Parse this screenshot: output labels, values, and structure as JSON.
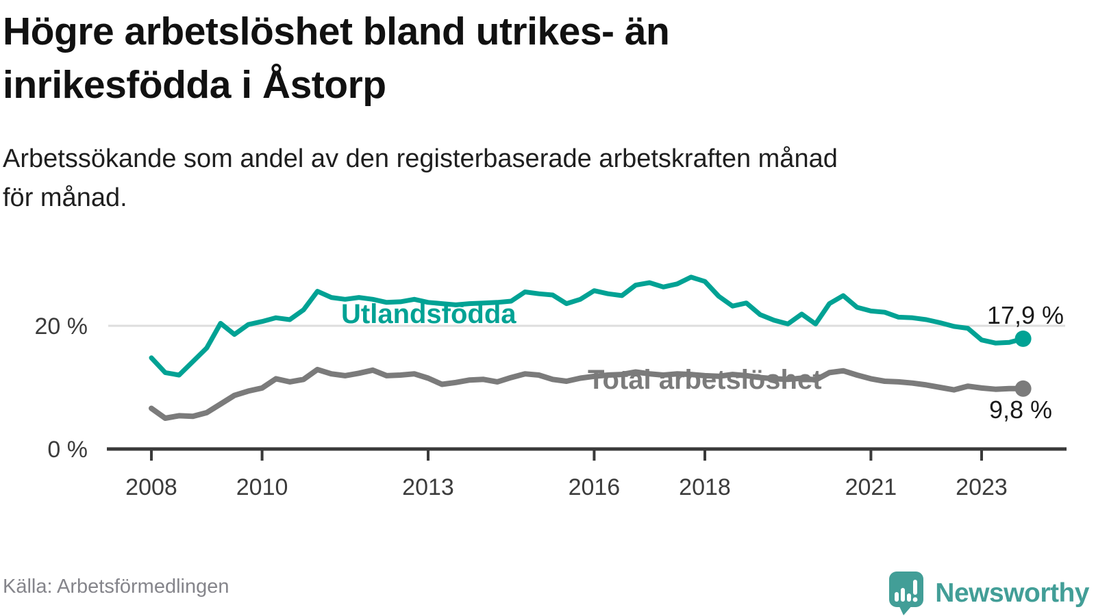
{
  "title": "Högre arbetslöshet bland utrikes- än\ninrikesfödda i Åstorp",
  "subtitle": "Arbetssökande som andel av den registerbaserade arbetskraften månad\nför månad.",
  "source": "Källa: Arbetsförmedlingen",
  "branding": {
    "name": "Newsworthy",
    "logo_icon": "speech-bubble-with-bar-chart-and-exclamation",
    "color": "#429E97"
  },
  "colors": {
    "accent_teal": "#00A294",
    "neutral_gray": "#7B7B7B",
    "text_dark": "#1A1A1A",
    "axis_dark": "#3A3A3A",
    "tick_text": "#3C3C3C",
    "gridline": "#DEDEDE"
  },
  "chart_data": {
    "type": "line",
    "title": "",
    "xlabel": "",
    "ylabel": "",
    "x_unit": "year (monthly data)",
    "y_unit": "%",
    "x_range": [
      2008,
      2023.75
    ],
    "ylim": [
      0,
      30
    ],
    "grid": "single horizontal gridline at 20 %",
    "legend_position": "inline labels on lines",
    "x_ticks": [
      {
        "value": 2008,
        "label": "2008"
      },
      {
        "value": 2010,
        "label": "2010"
      },
      {
        "value": 2013,
        "label": "2013"
      },
      {
        "value": 2016,
        "label": "2016"
      },
      {
        "value": 2018,
        "label": "2018"
      },
      {
        "value": 2021,
        "label": "2021"
      },
      {
        "value": 2023,
        "label": "2023"
      }
    ],
    "y_ticks": [
      {
        "value": 20,
        "label": "20 %"
      },
      {
        "value": 0,
        "label": "0 %"
      }
    ],
    "x": [
      2008.0,
      2008.25,
      2008.5,
      2008.75,
      2009.0,
      2009.25,
      2009.5,
      2009.75,
      2010.0,
      2010.25,
      2010.5,
      2010.75,
      2011.0,
      2011.25,
      2011.5,
      2011.75,
      2012.0,
      2012.25,
      2012.5,
      2012.75,
      2013.0,
      2013.25,
      2013.5,
      2013.75,
      2014.0,
      2014.25,
      2014.5,
      2014.75,
      2015.0,
      2015.25,
      2015.5,
      2015.75,
      2016.0,
      2016.25,
      2016.5,
      2016.75,
      2017.0,
      2017.25,
      2017.5,
      2017.75,
      2018.0,
      2018.25,
      2018.5,
      2018.75,
      2019.0,
      2019.25,
      2019.5,
      2019.75,
      2020.0,
      2020.25,
      2020.5,
      2020.75,
      2021.0,
      2021.25,
      2021.5,
      2021.75,
      2022.0,
      2022.25,
      2022.5,
      2022.75,
      2023.0,
      2023.25,
      2023.5,
      2023.75
    ],
    "series": [
      {
        "name": "Utlandsfödda",
        "color": "#00A294",
        "stroke_width": 7,
        "end_value": 17.9,
        "end_label": "17,9 %",
        "values": [
          14.8,
          12.4,
          12.0,
          14.2,
          16.4,
          20.4,
          18.6,
          20.2,
          20.7,
          21.3,
          21.0,
          22.6,
          25.6,
          24.6,
          24.3,
          24.6,
          24.3,
          23.8,
          23.9,
          24.3,
          23.8,
          23.6,
          23.4,
          23.6,
          23.7,
          23.8,
          24.0,
          25.5,
          25.2,
          25.0,
          23.6,
          24.3,
          25.7,
          25.2,
          24.9,
          26.6,
          27.0,
          26.3,
          26.8,
          27.9,
          27.2,
          24.8,
          23.2,
          23.7,
          21.8,
          20.9,
          20.3,
          21.9,
          20.3,
          23.6,
          24.9,
          23.0,
          22.4,
          22.2,
          21.4,
          21.3,
          21.0,
          20.5,
          19.9,
          19.6,
          17.7,
          17.2,
          17.3,
          17.9
        ]
      },
      {
        "name": "Total arbetslöshet",
        "color": "#7B7B7B",
        "stroke_width": 8,
        "end_value": 9.8,
        "end_label": "9,8 %",
        "values": [
          6.6,
          5.0,
          5.4,
          5.3,
          5.9,
          7.3,
          8.7,
          9.4,
          9.9,
          11.4,
          10.9,
          11.3,
          12.9,
          12.2,
          11.9,
          12.3,
          12.8,
          11.9,
          12.0,
          12.2,
          11.5,
          10.5,
          10.8,
          11.2,
          11.3,
          10.9,
          11.6,
          12.2,
          12.0,
          11.3,
          11.0,
          11.5,
          11.8,
          12.0,
          12.1,
          12.5,
          12.2,
          12.0,
          12.2,
          12.1,
          11.9,
          11.8,
          12.1,
          11.9,
          11.6,
          11.4,
          11.3,
          11.5,
          11.2,
          12.4,
          12.7,
          12.0,
          11.4,
          11.0,
          10.9,
          10.7,
          10.4,
          10.0,
          9.6,
          10.2,
          9.9,
          9.7,
          9.8,
          9.8
        ]
      }
    ]
  }
}
